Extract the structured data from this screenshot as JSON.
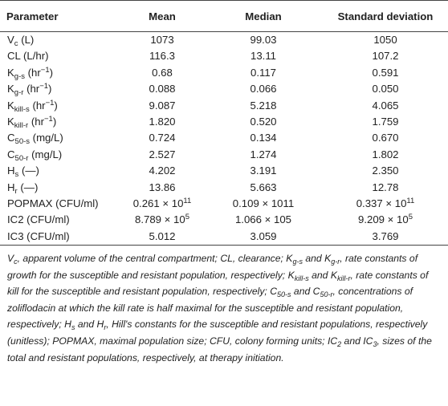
{
  "table": {
    "headers": [
      "Parameter",
      "Mean",
      "Median",
      "Standard deviation"
    ],
    "rows": [
      {
        "param": {
          "base": "V",
          "sub": "c",
          "rest": " (L)"
        },
        "mean": "1073",
        "median": "99.03",
        "sd": "1050"
      },
      {
        "param": {
          "base": "CL (L/hr)"
        },
        "mean": "116.3",
        "median": "13.11",
        "sd": "107.2"
      },
      {
        "param": {
          "base": "K",
          "sub": "g-s",
          "rest": " (hr",
          "sup": "−1",
          "tail": ")"
        },
        "mean": "0.68",
        "median": "0.117",
        "sd": "0.591"
      },
      {
        "param": {
          "base": "K",
          "sub": "g-r",
          "rest": " (hr",
          "sup": "−1",
          "tail": ")"
        },
        "mean": "0.088",
        "median": "0.066",
        "sd": "0.050"
      },
      {
        "param": {
          "base": "K",
          "sub": "kill-s",
          "rest": " (hr",
          "sup": "−1",
          "tail": ")"
        },
        "mean": "9.087",
        "median": "5.218",
        "sd": "4.065"
      },
      {
        "param": {
          "base": "K",
          "sub": "kill-r",
          "rest": " (hr",
          "sup": "−1",
          "tail": ")"
        },
        "mean": "1.820",
        "median": "0.520",
        "sd": "1.759"
      },
      {
        "param": {
          "base": "C",
          "sub": "50-s",
          "rest": " (mg/L)"
        },
        "mean": "0.724",
        "median": "0.134",
        "sd": "0.670"
      },
      {
        "param": {
          "base": "C",
          "sub": "50-r",
          "rest": " (mg/L)"
        },
        "mean": "2.527",
        "median": "1.274",
        "sd": "1.802"
      },
      {
        "param": {
          "base": "H",
          "sub": "s",
          "rest": " (—)"
        },
        "mean": "4.202",
        "median": "3.191",
        "sd": "2.350"
      },
      {
        "param": {
          "base": "H",
          "sub": "r",
          "rest": " (—)"
        },
        "mean": "13.86",
        "median": "5.663",
        "sd": "12.78"
      },
      {
        "param": {
          "base": "POPMAX (CFU/ml)"
        },
        "mean": {
          "base": "0.261 × 10",
          "sup": "11"
        },
        "median": {
          "base": "0.109 × 1011"
        },
        "sd": {
          "base": "0.337 × 10",
          "sup": "11"
        }
      },
      {
        "param": {
          "base": "IC2 (CFU/ml)"
        },
        "mean": {
          "base": "8.789 × 10",
          "sup": "5"
        },
        "median": {
          "base": "1.066 × 105"
        },
        "sd": {
          "base": "9.209 × 10",
          "sup": "5"
        }
      },
      {
        "param": {
          "base": "IC3 (CFU/ml)"
        },
        "mean": "5.012",
        "median": "3.059",
        "sd": "3.769"
      }
    ]
  },
  "footnote": [
    {
      "t": "V"
    },
    {
      "t": "c",
      "sub": true
    },
    {
      "t": ", apparent volume of the central compartment; CL, clearance; "
    },
    {
      "t": "K"
    },
    {
      "t": "g-s",
      "sub": true
    },
    {
      "t": " and "
    },
    {
      "t": "K"
    },
    {
      "t": "g-r",
      "sub": true
    },
    {
      "t": ", rate constants of growth for the susceptible and resistant population, respectively; "
    },
    {
      "t": "K"
    },
    {
      "t": "kill-s",
      "sub": true
    },
    {
      "t": " and "
    },
    {
      "t": "K"
    },
    {
      "t": "kill-r",
      "sub": true
    },
    {
      "t": ", rate constants of kill for the susceptible and resistant population, respectively; "
    },
    {
      "t": "C"
    },
    {
      "t": "50-s",
      "sub": true
    },
    {
      "t": " and "
    },
    {
      "t": "C"
    },
    {
      "t": "50-r",
      "sub": true
    },
    {
      "t": ", concentrations of zoliflodacin at which the kill rate is half maximal for the susceptible and resistant population, respectively; "
    },
    {
      "t": "H"
    },
    {
      "t": "s",
      "sub": true
    },
    {
      "t": " and "
    },
    {
      "t": "H"
    },
    {
      "t": "r",
      "sub": true
    },
    {
      "t": ", Hill's constants for the susceptible and resistant populations, respectively (unitless); POPMAX, maximal population size; CFU, colony forming units; "
    },
    {
      "t": "IC"
    },
    {
      "t": "2",
      "sub": true
    },
    {
      "t": " and "
    },
    {
      "t": "IC"
    },
    {
      "t": "3",
      "sub": true
    },
    {
      "t": ", sizes of the total and resistant populations, respectively, at therapy initiation."
    }
  ]
}
